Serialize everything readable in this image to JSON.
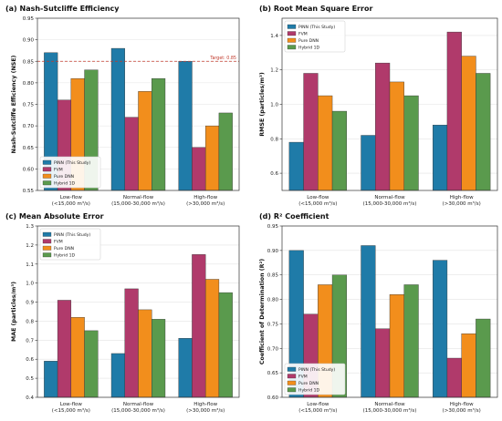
{
  "colors": {
    "PINN (This Study)": "#1f7ba8",
    "FVM": "#b03a6b",
    "Pure DNN": "#f28e1c",
    "Hybrid 1D": "#5a9a4d",
    "target_line": "#c0392b",
    "grid": "#e3e3e3"
  },
  "chart_data": [
    {
      "type": "bar",
      "title": "(a) Nash-Sutcliffe Efficiency",
      "ylabel": "Nash-Sutcliffe Efficiency (NSE)",
      "ylim": [
        0.55,
        0.95
      ],
      "yticks": [
        "0.55",
        "0.60",
        "0.65",
        "0.70",
        "0.75",
        "0.80",
        "0.85",
        "0.90",
        "0.95"
      ],
      "ytick_values": [
        0.55,
        0.6,
        0.65,
        0.7,
        0.75,
        0.8,
        0.85,
        0.9,
        0.95
      ],
      "categories": [
        "Low-flow",
        "Normal-flow",
        "High-flow"
      ],
      "category_sublabels": [
        "(<15,000 m³/s)",
        "(15,000-30,000 m³/s)",
        "(>30,000 m³/s)"
      ],
      "series": [
        {
          "name": "PINN (This Study)",
          "values": [
            0.87,
            0.88,
            0.85
          ]
        },
        {
          "name": "FVM",
          "values": [
            0.76,
            0.72,
            0.65
          ]
        },
        {
          "name": "Pure DNN",
          "values": [
            0.81,
            0.78,
            0.7
          ]
        },
        {
          "name": "Hybrid 1D",
          "values": [
            0.83,
            0.81,
            0.73
          ]
        }
      ],
      "target": {
        "value": 0.85,
        "label": "Target: 0.85"
      },
      "legend_position": "lower-left",
      "grid": true
    },
    {
      "type": "bar",
      "title": "(b) Root Mean Square Error",
      "ylabel": "RMSE (particles/m³)",
      "ylim": [
        0.5,
        1.5
      ],
      "yticks": [
        "0.6",
        "0.8",
        "1.0",
        "1.2",
        "1.4"
      ],
      "ytick_values": [
        0.6,
        0.8,
        1.0,
        1.2,
        1.4
      ],
      "categories": [
        "Low-flow",
        "Normal-flow",
        "High-flow"
      ],
      "category_sublabels": [
        "(<15,000 m³/s)",
        "(15,000-30,000 m³/s)",
        "(>30,000 m³/s)"
      ],
      "series": [
        {
          "name": "PINN (This Study)",
          "values": [
            0.78,
            0.82,
            0.88
          ]
        },
        {
          "name": "FVM",
          "values": [
            1.18,
            1.24,
            1.42
          ]
        },
        {
          "name": "Pure DNN",
          "values": [
            1.05,
            1.13,
            1.28
          ]
        },
        {
          "name": "Hybrid 1D",
          "values": [
            0.96,
            1.05,
            1.18
          ]
        }
      ],
      "legend_position": "upper-left",
      "grid": true
    },
    {
      "type": "bar",
      "title": "(c) Mean Absolute Error",
      "ylabel": "MAE (particles/m³)",
      "ylim": [
        0.4,
        1.3
      ],
      "yticks": [
        "0.4",
        "0.5",
        "0.6",
        "0.7",
        "0.8",
        "0.9",
        "1.0",
        "1.1",
        "1.2",
        "1.3"
      ],
      "ytick_values": [
        0.4,
        0.5,
        0.6,
        0.7,
        0.8,
        0.9,
        1.0,
        1.1,
        1.2,
        1.3
      ],
      "categories": [
        "Low-flow",
        "Normal-flow",
        "High-flow"
      ],
      "category_sublabels": [
        "(<15,000 m³/s)",
        "(15,000-30,000 m³/s)",
        "(>30,000 m³/s)"
      ],
      "series": [
        {
          "name": "PINN (This Study)",
          "values": [
            0.59,
            0.63,
            0.71
          ]
        },
        {
          "name": "FVM",
          "values": [
            0.91,
            0.97,
            1.15
          ]
        },
        {
          "name": "Pure DNN",
          "values": [
            0.82,
            0.86,
            1.02
          ]
        },
        {
          "name": "Hybrid 1D",
          "values": [
            0.75,
            0.81,
            0.95
          ]
        }
      ],
      "legend_position": "upper-left",
      "grid": true
    },
    {
      "type": "bar",
      "title": "(d) R² Coefficient",
      "ylabel": "Coefficient of Determination (R²)",
      "ylim": [
        0.6,
        0.95
      ],
      "yticks": [
        "0.60",
        "0.65",
        "0.70",
        "0.75",
        "0.80",
        "0.85",
        "0.90",
        "0.95"
      ],
      "ytick_values": [
        0.6,
        0.65,
        0.7,
        0.75,
        0.8,
        0.85,
        0.9,
        0.95
      ],
      "categories": [
        "Low-flow",
        "Normal-flow",
        "High-flow"
      ],
      "category_sublabels": [
        "(<15,000 m³/s)",
        "(15,000-30,000 m³/s)",
        "(>30,000 m³/s)"
      ],
      "series": [
        {
          "name": "PINN (This Study)",
          "values": [
            0.9,
            0.91,
            0.88
          ]
        },
        {
          "name": "FVM",
          "values": [
            0.77,
            0.74,
            0.68
          ]
        },
        {
          "name": "Pure DNN",
          "values": [
            0.83,
            0.81,
            0.73
          ]
        },
        {
          "name": "Hybrid 1D",
          "values": [
            0.85,
            0.83,
            0.76
          ]
        }
      ],
      "legend_position": "lower-left",
      "grid": true
    }
  ]
}
